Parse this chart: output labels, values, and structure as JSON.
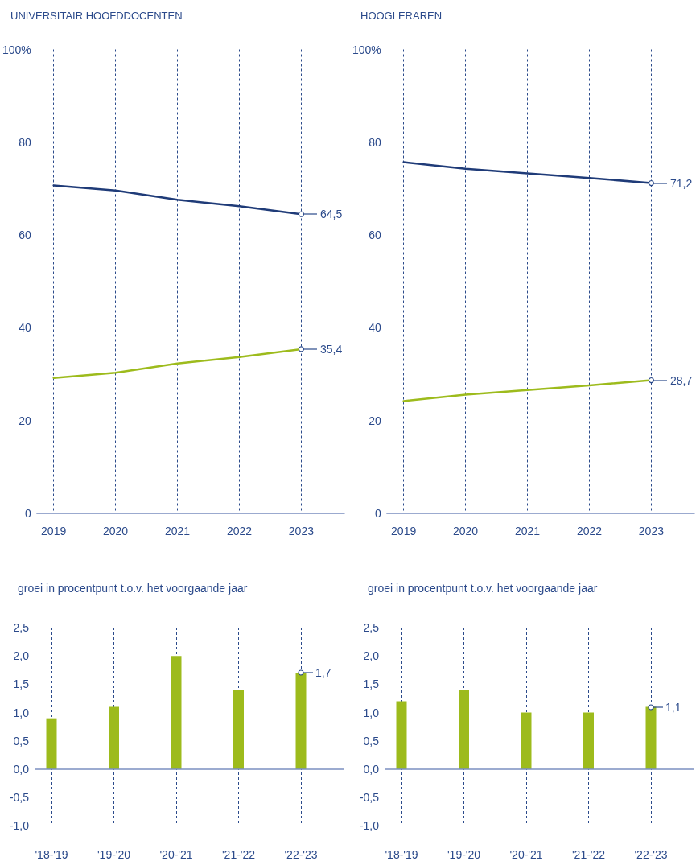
{
  "chart_data": [
    {
      "type": "line",
      "title": "UNIVERSITAIR HOOFDDOCENTEN",
      "categories": [
        "2019",
        "2020",
        "2021",
        "2022",
        "2023"
      ],
      "series": [
        {
          "color": "#1f3b78",
          "values": [
            70.7,
            69.6,
            67.6,
            66.2,
            64.5
          ],
          "value_labels": [
            null,
            null,
            null,
            null,
            "64,5"
          ]
        },
        {
          "color": "#9dbb1c",
          "values": [
            29.2,
            30.3,
            32.3,
            33.7,
            35.4
          ],
          "value_labels": [
            null,
            null,
            null,
            null,
            "35,4"
          ]
        }
      ],
      "ylim": [
        0,
        100
      ],
      "yticks": [
        0,
        20,
        40,
        60,
        80,
        {
          "value": 100,
          "label": "100%"
        }
      ],
      "grid": "x"
    },
    {
      "type": "line",
      "title": "HOOGLERAREN",
      "categories": [
        "2019",
        "2020",
        "2021",
        "2022",
        "2023"
      ],
      "series": [
        {
          "color": "#1f3b78",
          "values": [
            75.7,
            74.3,
            73.3,
            72.3,
            71.2
          ],
          "value_labels": [
            null,
            null,
            null,
            null,
            "71,2"
          ]
        },
        {
          "color": "#9dbb1c",
          "values": [
            24.2,
            25.6,
            26.6,
            27.6,
            28.7
          ],
          "value_labels": [
            null,
            null,
            null,
            null,
            "28,7"
          ]
        }
      ],
      "ylim": [
        0,
        100
      ],
      "yticks": [
        0,
        20,
        40,
        60,
        80,
        {
          "value": 100,
          "label": "100%"
        }
      ],
      "grid": "x"
    },
    {
      "type": "bar",
      "title": "groei in procentpunt t.o.v. het voorgaande jaar",
      "categories": [
        "'18-'19",
        "'19-'20",
        "'20-'21",
        "'21-'22",
        "'22-'23"
      ],
      "values": [
        0.9,
        1.1,
        2.0,
        1.4,
        1.7
      ],
      "color": "#9dbb1c",
      "value_labels": [
        null,
        null,
        null,
        null,
        "1,7"
      ],
      "ylim": [
        -1.0,
        2.5
      ],
      "yticks": [
        {
          "value": -1,
          "label": "-1,0"
        },
        {
          "value": -0.5,
          "label": "-0,5"
        },
        {
          "value": 0,
          "label": "0,0"
        },
        {
          "value": 0.5,
          "label": "0,5"
        },
        {
          "value": 1,
          "label": "1,0"
        },
        {
          "value": 1.5,
          "label": "1,5"
        },
        {
          "value": 2,
          "label": "2,0"
        },
        {
          "value": 2.5,
          "label": "2,5"
        }
      ],
      "grid": "x",
      "ref_lines": [
        {
          "axis": "y",
          "value": 0,
          "color": "#7b8fc0"
        }
      ]
    },
    {
      "type": "bar",
      "title": "groei in procentpunt t.o.v. het voorgaande jaar",
      "categories": [
        "'18-'19",
        "'19-'20",
        "'20-'21",
        "'21-'22",
        "'22-'23"
      ],
      "values": [
        1.2,
        1.4,
        1.0,
        1.0,
        1.1
      ],
      "color": "#9dbb1c",
      "value_labels": [
        null,
        null,
        null,
        null,
        "1,1"
      ],
      "ylim": [
        -1.0,
        2.5
      ],
      "yticks": [
        {
          "value": -1,
          "label": "-1,0"
        },
        {
          "value": -0.5,
          "label": "-0,5"
        },
        {
          "value": 0,
          "label": "0,0"
        },
        {
          "value": 0.5,
          "label": "0,5"
        },
        {
          "value": 1,
          "label": "1,0"
        },
        {
          "value": 1.5,
          "label": "1,5"
        },
        {
          "value": 2,
          "label": "2,0"
        },
        {
          "value": 2.5,
          "label": "2,5"
        }
      ],
      "grid": "x",
      "ref_lines": [
        {
          "axis": "y",
          "value": 0,
          "color": "#7b8fc0"
        }
      ]
    }
  ]
}
